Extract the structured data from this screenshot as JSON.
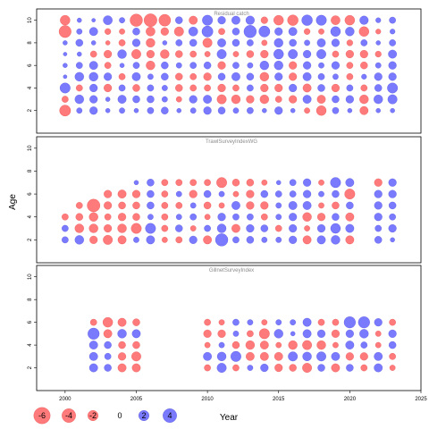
{
  "chart_data": {
    "type": "scatter",
    "subtype": "bubble-residuals",
    "xlabel": "Year",
    "ylabel": "Age",
    "xlim": [
      1998,
      2025
    ],
    "ylim": [
      0,
      11
    ],
    "x_ticks": [
      2000,
      2005,
      2010,
      2015,
      2020,
      2025
    ],
    "y_ticks": [
      2,
      4,
      6,
      8,
      10
    ],
    "colors": {
      "positive": "#5555ff",
      "negative": "#ff5555"
    },
    "legend": {
      "placement": "bottom-left",
      "entries": [
        {
          "label": "-6",
          "value": -6
        },
        {
          "label": "-4",
          "value": -4
        },
        {
          "label": "-2",
          "value": -2
        },
        {
          "label": "0",
          "value": 0
        },
        {
          "label": "2",
          "value": 2
        },
        {
          "label": "4",
          "value": 4
        }
      ]
    },
    "panels": [
      {
        "title": "Residual catch",
        "years": [
          2000,
          2001,
          2002,
          2003,
          2004,
          2005,
          2006,
          2007,
          2008,
          2009,
          2010,
          2011,
          2012,
          2013,
          2014,
          2015,
          2016,
          2017,
          2018,
          2019,
          2020,
          2021,
          2022,
          2023
        ],
        "ages": [
          2,
          3,
          4,
          5,
          6,
          7,
          8,
          9,
          10
        ],
        "residuals": {
          "10": [
            -1.8,
            0.2,
            0.1,
            1.5,
            0.4,
            -3.2,
            -3.5,
            -2.8,
            0.8,
            -1.2,
            2.0,
            1.0,
            1.2,
            1.3,
            -0.7,
            -1.8,
            -2.2,
            2.2,
            2.0,
            -1.5,
            -1.8,
            1.3,
            0.3,
            0.6
          ],
          "9": [
            -3.0,
            0.4,
            1.2,
            -0.5,
            -0.4,
            0.8,
            -1.5,
            -1.0,
            -1.6,
            1.5,
            2.4,
            -0.6,
            0.8,
            3.2,
            2.4,
            1.0,
            1.2,
            -0.5,
            -0.4,
            1.8,
            1.4,
            -1.8,
            -0.3,
            0.3
          ],
          "8": [
            0.2,
            0.8,
            0.2,
            -0.2,
            -0.6,
            1.0,
            -1.4,
            0.2,
            0.6,
            0.8,
            -1.6,
            1.2,
            0.8,
            0.6,
            -0.4,
            1.4,
            0.8,
            0.4,
            1.2,
            1.0,
            -0.5,
            0.6,
            0.2,
            0.6
          ],
          "7": [
            0.1,
            0.2,
            -0.6,
            -1.0,
            1.4,
            -1.6,
            -1.0,
            -1.4,
            -0.8,
            -0.6,
            -0.4,
            1.6,
            -0.4,
            -0.8,
            -1.0,
            1.8,
            1.6,
            1.0,
            1.6,
            -0.6,
            -1.0,
            -1.0,
            -0.5,
            1.2
          ],
          "6": [
            0.2,
            0.6,
            1.2,
            -0.6,
            0.2,
            0.6,
            -1.4,
            0.8,
            0.4,
            0.6,
            0.8,
            -1.0,
            0.6,
            0.4,
            1.4,
            1.4,
            -1.0,
            1.0,
            0.4,
            1.0,
            -0.6,
            -0.8,
            0.4,
            1.0
          ],
          "5": [
            0.1,
            1.4,
            1.4,
            1.0,
            -0.6,
            1.2,
            0.4,
            0.8,
            -0.8,
            -0.6,
            -1.0,
            0.8,
            1.2,
            0.8,
            -1.4,
            1.0,
            -1.0,
            1.2,
            0.6,
            0.4,
            -0.6,
            0.3,
            1.0,
            1.0
          ],
          "4": [
            2.0,
            -0.6,
            1.0,
            -1.0,
            0.6,
            -0.8,
            0.6,
            0.4,
            -0.8,
            -0.6,
            -0.6,
            -1.0,
            -0.6,
            0.6,
            -1.0,
            -1.0,
            1.0,
            -1.2,
            0.8,
            -1.0,
            0.6,
            -0.6,
            0.8,
            2.0
          ],
          "3": [
            -0.6,
            1.4,
            1.0,
            0.2,
            1.2,
            0.8,
            0.8,
            0.4,
            -0.4,
            1.0,
            1.2,
            -1.6,
            -1.4,
            -1.0,
            -1.4,
            -0.6,
            -1.0,
            1.2,
            -1.2,
            0.8,
            1.0,
            -1.4,
            1.4,
            1.6
          ],
          "2": [
            -2.4,
            0.4,
            1.0,
            0.2,
            0.4,
            0.2,
            0.6,
            0.8,
            0.2,
            0.4,
            1.0,
            0.8,
            0.4,
            0.6,
            0.2,
            1.0,
            0.2,
            -0.4,
            -1.8,
            0.6,
            0.2,
            -1.2,
            0.2,
            0.2
          ]
        }
      },
      {
        "title": "TrawlSurveyIndexWG",
        "years": [
          2000,
          2001,
          2002,
          2003,
          2004,
          2005,
          2006,
          2007,
          2008,
          2009,
          2010,
          2011,
          2012,
          2013,
          2014,
          2015,
          2016,
          2017,
          2018,
          2019,
          2020,
          2022,
          2023
        ],
        "ages": [
          2,
          3,
          4,
          5,
          6,
          7
        ],
        "residuals": {
          "7": [
            null,
            null,
            null,
            null,
            null,
            0.2,
            0.8,
            -0.6,
            -0.6,
            -0.6,
            -0.6,
            -2.0,
            -0.8,
            -0.8,
            -0.4,
            0.2,
            0.6,
            1.0,
            -0.4,
            2.0,
            1.2,
            -1.0,
            1.0
          ],
          "6": [
            null,
            null,
            null,
            -1.0,
            -1.2,
            -1.0,
            0.8,
            -0.6,
            0.4,
            -1.0,
            0.8,
            0.4,
            -0.4,
            -1.0,
            0.8,
            0.6,
            0.6,
            1.0,
            0.4,
            0.8,
            -2.0,
            1.0,
            1.0
          ],
          "5": [
            null,
            -0.6,
            -3.4,
            -1.0,
            -0.8,
            -0.8,
            0.8,
            -0.6,
            -0.6,
            0.4,
            -0.8,
            -0.4,
            1.2,
            -1.0,
            -1.0,
            0.4,
            1.2,
            1.2,
            -0.4,
            -0.8,
            0.8,
            1.0,
            0.8
          ],
          "4": [
            -0.6,
            -0.8,
            -1.4,
            -0.6,
            -1.0,
            -0.8,
            0.4,
            -0.6,
            0.4,
            0.6,
            -0.4,
            1.0,
            0.6,
            0.6,
            -0.6,
            0.4,
            1.0,
            -1.4,
            -1.0,
            0.8,
            -1.2,
            1.0,
            0.6
          ],
          "3": [
            0.6,
            -1.4,
            -1.4,
            -1.0,
            -1.4,
            -2.0,
            2.0,
            -0.6,
            0.8,
            -0.4,
            0.6,
            1.4,
            -1.2,
            1.0,
            0.8,
            -0.6,
            1.0,
            -0.4,
            1.0,
            1.8,
            1.2,
            0.6,
            1.0
          ],
          "2": [
            0.6,
            1.4,
            -1.0,
            -1.6,
            -1.2,
            0.4,
            1.2,
            -0.4,
            -0.6,
            1.0,
            -1.2,
            3.2,
            0.6,
            0.8,
            0.4,
            0.4,
            1.0,
            -1.2,
            1.2,
            1.4,
            -1.2,
            0.8,
            0.2
          ]
        }
      },
      {
        "title": "GillnetSurveyIndex",
        "years": [
          2002,
          2003,
          2004,
          2005,
          2010,
          2011,
          2012,
          2013,
          2014,
          2015,
          2016,
          2017,
          2018,
          2019,
          2020,
          2021,
          2022,
          2023
        ],
        "ages": [
          2,
          3,
          4,
          5,
          6
        ],
        "residuals": {
          "6": [
            -0.6,
            -1.8,
            -1.2,
            -0.8,
            -0.6,
            -0.4,
            0.6,
            0.4,
            -0.4,
            0.4,
            0.4,
            1.2,
            -0.6,
            -0.6,
            2.6,
            2.6,
            1.0,
            -0.6
          ],
          "5": [
            2.6,
            -1.2,
            1.4,
            1.2,
            -1.0,
            -1.0,
            0.4,
            -0.6,
            -2.0,
            1.4,
            0.2,
            1.2,
            1.0,
            -1.0,
            1.0,
            1.4,
            -0.4,
            1.0
          ],
          "4": [
            1.2,
            0.8,
            -0.8,
            -0.8,
            -0.4,
            0.4,
            -0.8,
            -1.4,
            -1.2,
            -0.4,
            -1.4,
            -1.6,
            -1.4,
            -0.4,
            1.2,
            0.6,
            -0.4,
            0.8
          ],
          "3": [
            1.2,
            0.6,
            -1.0,
            -1.6,
            1.2,
            1.4,
            2.0,
            -1.2,
            -1.2,
            -1.2,
            1.6,
            1.4,
            1.6,
            1.2,
            -1.0,
            -1.0,
            1.2,
            -0.6
          ],
          "2": [
            1.2,
            0.8,
            -1.2,
            -1.2,
            -0.6,
            1.6,
            -0.6,
            0.4,
            1.0,
            -1.0,
            -0.8,
            -1.6,
            0.8,
            -1.2,
            0.8,
            -0.6,
            1.2,
            -0.4
          ]
        }
      }
    ]
  }
}
